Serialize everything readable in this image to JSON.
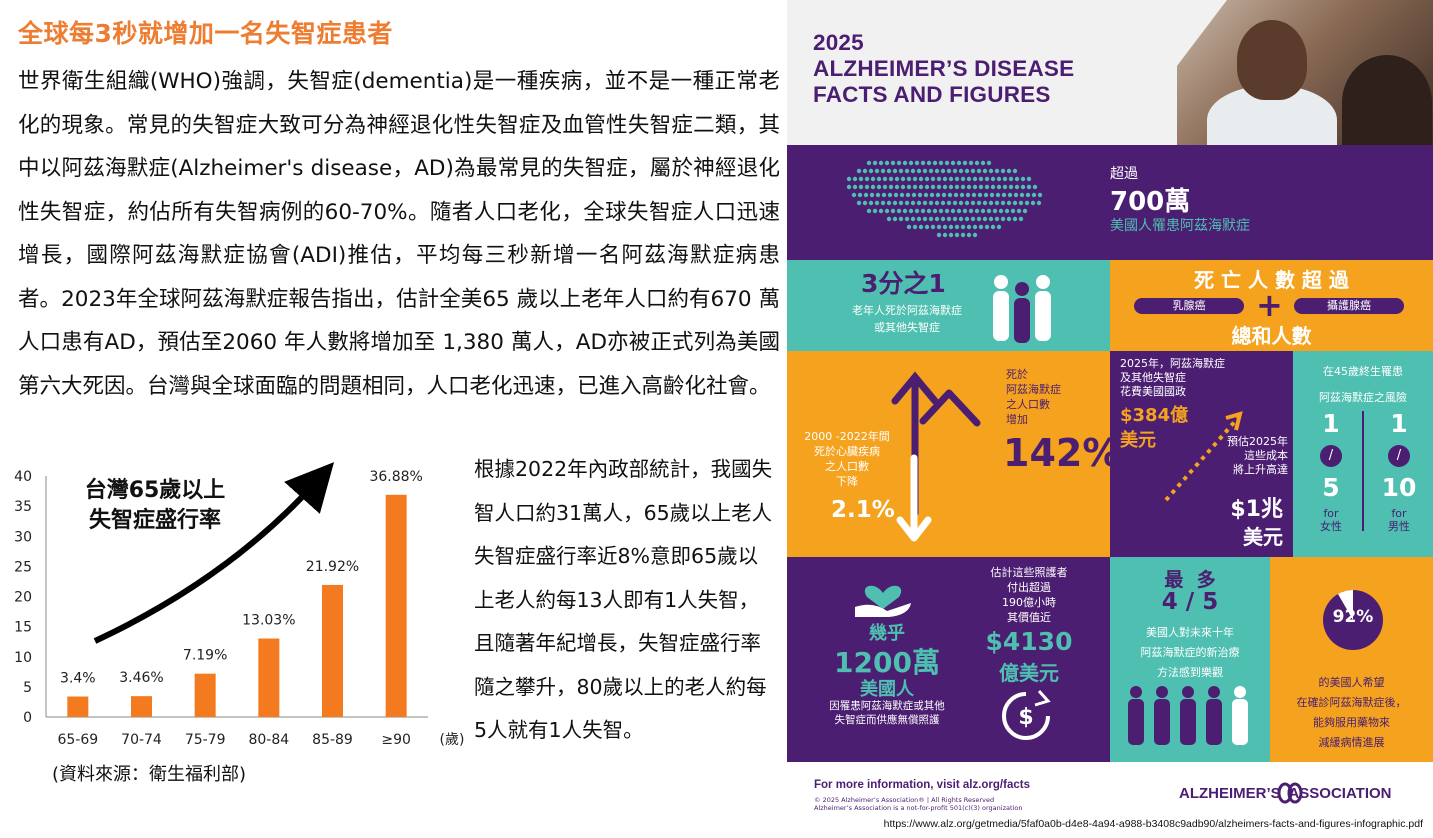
{
  "left": {
    "heading": "全球每3秒就增加一名失智症患者",
    "paragraph": "世界衛生組織(WHO)強調，失智症(dementia)是一種疾病，並不是一種正常老化的現象。常見的失智症大致可分為神經退化性失智症及血管性失智症二類，其中以阿茲海默症(Alzheimer's disease，AD)為最常見的失智症，屬於神經退化性失智症，約佔所有失智病例的60-70%。隨者人口老化，全球失智症人口迅速增長，國際阿茲海默症協會(ADI)推估，平均每三秒新增一名阿茲海默症病患者。2023年全球阿茲海默症報告指出，估計全美65 歲以上老年人口約有670 萬人口患有AD，預估至2060 年人數將增加至 1,380 萬人，AD亦被正式列為美國第六大死因。台灣與全球面臨的問題相同，人口老化迅速，已進入高齡化社會。",
    "side_text": "根據2022年內政部統計，我國失智人口約31萬人，65歲以上老人失智症盛行率近8%意即65歲以上老人約每13人即有1人失智，且隨著年紀增長，失智症盛行率隨之攀升，80歲以上的老人約每5人就有1人失智。",
    "source": "(資料來源：衛生福利部)"
  },
  "chart_data": {
    "type": "bar",
    "title": "台灣65歲以上\n失智症盛行率",
    "categories": [
      "65-69",
      "70-74",
      "75-79",
      "80-84",
      "85-89",
      "≥90"
    ],
    "values": [
      3.4,
      3.46,
      7.19,
      13.03,
      21.92,
      36.88
    ],
    "value_labels": [
      "3.4%",
      "3.46%",
      "7.19%",
      "13.03%",
      "21.92%",
      "36.88%"
    ],
    "y_ticks": [
      "0",
      "5",
      "10",
      "15",
      "20",
      "25",
      "30",
      "35",
      "40"
    ],
    "ylim": [
      0,
      40
    ],
    "xlabel": "(歲)",
    "ylabel": "",
    "bar_color": "#f47a20",
    "grid": false
  },
  "info": {
    "title_line1": "2025",
    "title_line2": "ALZHEIMER’S DISEASE",
    "title_line3": "FACTS AND FIGURES",
    "r1": {
      "small": "超過",
      "big": "700萬",
      "sub": "美國人罹患阿茲海默症"
    },
    "r2": {
      "frac": "3分之1",
      "frac_desc_1": "老年人死於阿茲海默症",
      "frac_desc_2": "或其他失智症",
      "death_title": "死 亡 人 數 超 過",
      "pill_left": "乳腺癌",
      "pill_right": "攝護腺癌",
      "plus": "+",
      "death_sum": "總和人數"
    },
    "r3": {
      "heart_label_1": "2000 -2022年間",
      "heart_label_2": "死於心臟疾病",
      "heart_label_3": "之人口數",
      "heart_label_4": "下降",
      "heart_pct": "2.1%",
      "ad_label_1": "死於",
      "ad_label_2": "阿茲海默症",
      "ad_label_3": "之人口數",
      "ad_label_4": "增加",
      "ad_pct": "142%",
      "cost_1": "2025年，阿茲海默症",
      "cost_2": "及其他失智症",
      "cost_3": "花費美國國政",
      "cost_amount": "$384億",
      "cost_unit": "美元",
      "future_1": "預估2025年",
      "future_2": "這些成本",
      "future_3": "將上升高達",
      "future_amount": "$1兆",
      "future_unit": "美元",
      "risk_1": "在45歲終生罹患",
      "risk_2": "阿茲海默症之風險",
      "risk_f_top": "1",
      "risk_f_bottom": "5",
      "risk_f_label": "for\n女性",
      "risk_m_top": "1",
      "risk_m_bottom": "10",
      "risk_m_label": "for\n男性",
      "slash": "/"
    },
    "r4": {
      "care_pre": "幾乎",
      "care_big": "1200萬",
      "care_unit": "美國人",
      "care_desc_1": "因罹患阿茲海默症或其他",
      "care_desc_2": "失智症而供應無償照護",
      "hours_1": "估計這些照護者",
      "hours_2": "付出超過",
      "hours_3": "190億小時",
      "hours_4": "其價值近",
      "hours_amount": "$4130",
      "hours_unit": "億美元",
      "most": "最  多",
      "ratio": "4 / 5",
      "opt_1": "美國人對未來十年",
      "opt_2": "阿茲海默症的新治療",
      "opt_3": "方法感到樂觀",
      "pct92": "92%",
      "hope_1": "的美國人希望",
      "hope_2": "在確診阿茲海默症後，",
      "hope_3": "能夠服用藥物來",
      "hope_4": "減緩病情進展"
    },
    "footer": {
      "more": "For more information, visit alz.org/facts",
      "copy_1": "© 2025 Alzheimer’s  Association® | All Rights Reserved",
      "copy_2": "Alzheimer’s  Association is a not-for-profit 501(c)(3) organization",
      "logo_text": "ALZHEIMER’S  ASSOCIATION",
      "url": "https://www.alz.org/getmedia/5faf0a0b-d4e8-4a94-a988-b3408c9adb90/alzheimers-facts-and-figures-infographic.pdf"
    },
    "colors": {
      "purple": "#4b1e71",
      "teal": "#4ebfb0",
      "orange": "#f5a21e"
    }
  }
}
